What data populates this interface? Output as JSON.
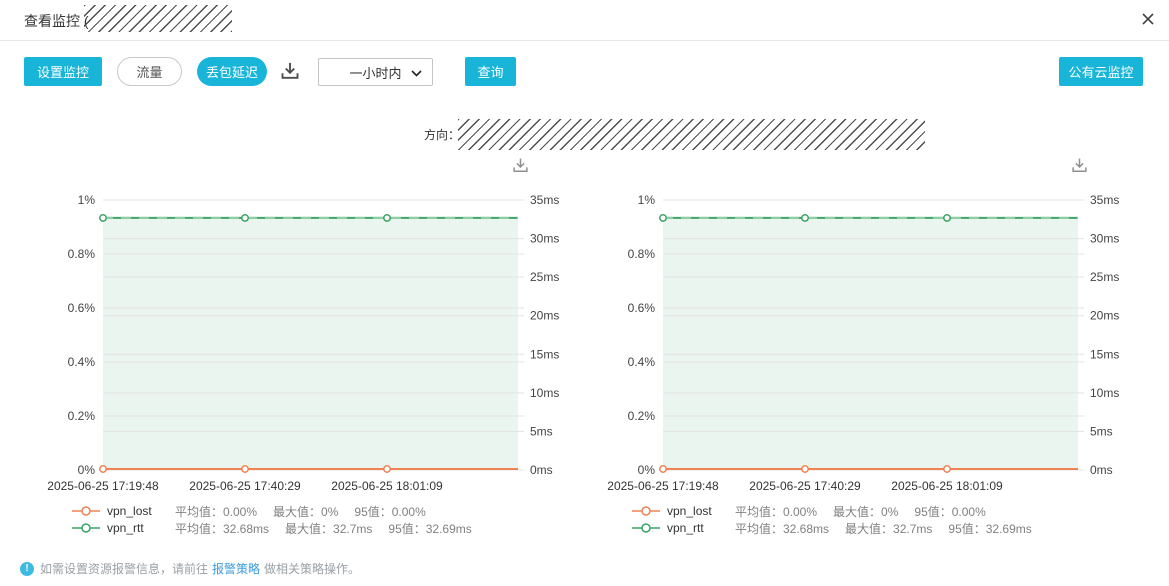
{
  "header": {
    "title": "查看监控 ("
  },
  "toolbar": {
    "set_monitor_label": "设置监控",
    "traffic_label": "流量",
    "loss_delay_label": "丢包延迟",
    "time_range_value": "一小时内",
    "query_label": "查询",
    "public_cloud_label": "公有云监控"
  },
  "direction_label": "方向：",
  "colors": {
    "accent": "#19b5d9",
    "grid": "#e3e3e3",
    "axis_text": "#444444",
    "x_text": "#333333",
    "link": "#3b9cdd",
    "info": "#3fbbe2",
    "icon_dark": "#4c4c4c",
    "icon_gray": "#8f8f8f"
  },
  "chart_data": [
    {
      "type": "line",
      "x_ticks": [
        "2025-06-25 17:19:48",
        "2025-06-25 17:40:29",
        "2025-06-25 18:01:09"
      ],
      "left_axis": {
        "unit": "%",
        "min": 0,
        "max": 1,
        "labels": [
          "1%",
          "0.8%",
          "0.6%",
          "0.4%",
          "0.2%",
          "0%"
        ]
      },
      "right_axis": {
        "unit": "ms",
        "min": 0,
        "max": 35,
        "labels": [
          "35ms",
          "30ms",
          "25ms",
          "20ms",
          "15ms",
          "10ms",
          "5ms",
          "0ms"
        ]
      },
      "series": [
        {
          "name": "vpn_lost",
          "axis": "left",
          "color": "#f08352",
          "values": [
            0,
            0,
            0
          ],
          "stats": [
            [
              "平均值：",
              "0.00%"
            ],
            [
              "最大值：",
              "0%"
            ],
            [
              "95值：",
              "0.00%"
            ]
          ]
        },
        {
          "name": "vpn_rtt",
          "axis": "right",
          "color": "#3ba467",
          "fill": "#ebf5ef",
          "dash": "#90d0a5",
          "values": [
            32.68,
            32.68,
            32.68
          ],
          "stats": [
            [
              "平均值：",
              "32.68ms"
            ],
            [
              "最大值：",
              "32.7ms"
            ],
            [
              "95值：",
              "32.69ms"
            ]
          ]
        }
      ]
    },
    {
      "type": "line",
      "x_ticks": [
        "2025-06-25 17:19:48",
        "2025-06-25 17:40:29",
        "2025-06-25 18:01:09"
      ],
      "left_axis": {
        "unit": "%",
        "min": 0,
        "max": 1,
        "labels": [
          "1%",
          "0.8%",
          "0.6%",
          "0.4%",
          "0.2%",
          "0%"
        ]
      },
      "right_axis": {
        "unit": "ms",
        "min": 0,
        "max": 35,
        "labels": [
          "35ms",
          "30ms",
          "25ms",
          "20ms",
          "15ms",
          "10ms",
          "5ms",
          "0ms"
        ]
      },
      "series": [
        {
          "name": "vpn_lost",
          "axis": "left",
          "color": "#f08352",
          "values": [
            0,
            0,
            0
          ],
          "stats": [
            [
              "平均值：",
              "0.00%"
            ],
            [
              "最大值：",
              "0%"
            ],
            [
              "95值：",
              "0.00%"
            ]
          ]
        },
        {
          "name": "vpn_rtt",
          "axis": "right",
          "color": "#3ba467",
          "fill": "#ebf5ef",
          "dash": "#90d0a5",
          "values": [
            32.68,
            32.68,
            32.68
          ],
          "stats": [
            [
              "平均值：",
              "32.68ms"
            ],
            [
              "最大值：",
              "32.7ms"
            ],
            [
              "95值：",
              "32.69ms"
            ]
          ]
        }
      ]
    }
  ],
  "footer": {
    "text_before": "如需设置资源报警信息，请前往",
    "link_label": "报警策略",
    "text_after": "做相关策略操作。"
  }
}
